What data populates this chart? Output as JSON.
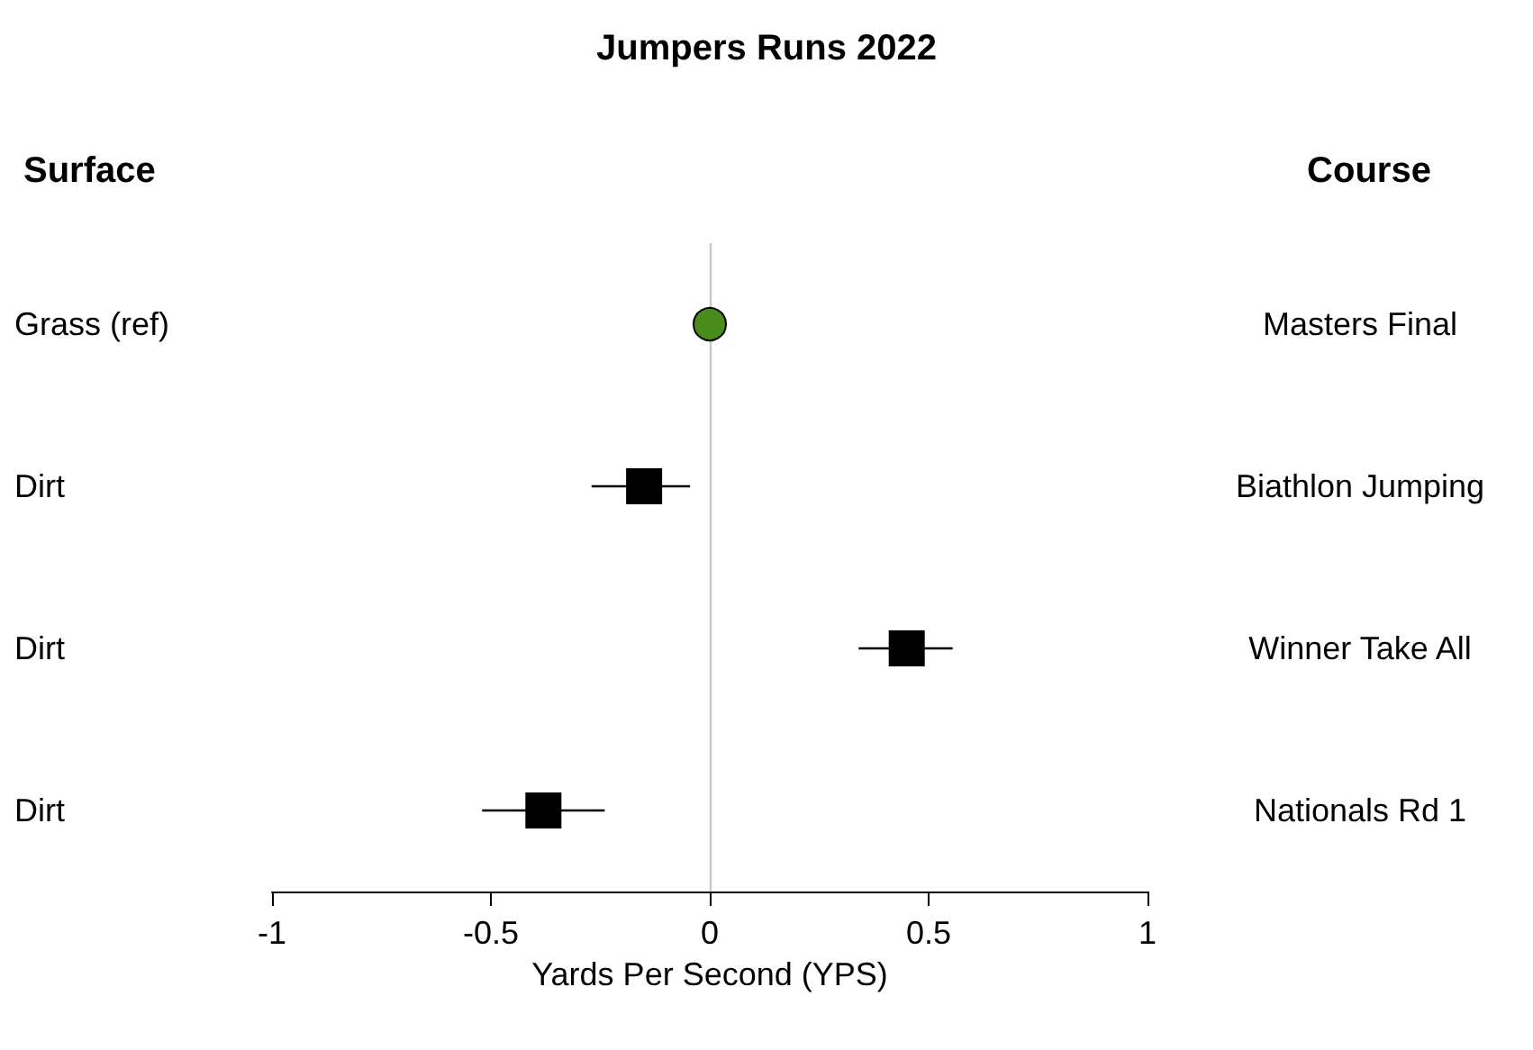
{
  "chart_data": {
    "type": "scatter",
    "orientation": "horizontal",
    "title": "Jumpers Runs 2022",
    "xlabel": "Yards Per Second (YPS)",
    "ylabel": "Surface",
    "y2label": "Course",
    "categories": [
      "Grass (ref)",
      "Dirt",
      "Dirt",
      "Dirt"
    ],
    "y2_categories": [
      "Masters Final",
      "Biathlon Jumping",
      "Winner Take All",
      "Nationals Rd 1"
    ],
    "series": [
      {
        "color": "#4a8c1c",
        "marker": "circle",
        "values": [
          0,
          null,
          null,
          null
        ],
        "errors": [
          null,
          null,
          null,
          null
        ]
      },
      {
        "color": "#000000",
        "marker": "square",
        "values": [
          null,
          -0.15,
          0.45,
          -0.38
        ],
        "errors": [
          null,
          [
            -0.27,
            -0.045
          ],
          [
            0.34,
            0.555
          ],
          [
            -0.52,
            -0.24
          ]
        ]
      }
    ],
    "xlim": [
      -1,
      1
    ],
    "xticks": [
      -1,
      -0.5,
      0,
      0.5,
      1
    ],
    "ref_lines": [
      {
        "axis": "x",
        "value": 0,
        "label": null,
        "color": "#c8c8c8"
      }
    ]
  }
}
